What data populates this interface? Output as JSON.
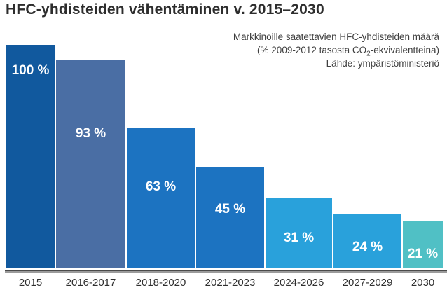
{
  "title": "HFC-yhdisteiden vähentäminen v. 2015–2030",
  "subtitle": {
    "line1": "Markkinoille saatettavien HFC-yhdisteiden määrä",
    "line2_prefix": "(% 2009-2012 tasosta CO",
    "line2_sub": "2",
    "line2_suffix": "-ekvivalentteina)",
    "line3": "Lähde: ympäristöministeriö"
  },
  "chart_data": {
    "type": "bar",
    "title": "HFC-yhdisteiden vähentäminen v. 2015–2030",
    "categories": [
      "2015",
      "2016-2017",
      "2018-2020",
      "2021-2023",
      "2024-2026",
      "2027-2029",
      "2030"
    ],
    "values": [
      100,
      93,
      63,
      45,
      31,
      24,
      21
    ],
    "value_labels": [
      "100 %",
      "93 %",
      "63 %",
      "45 %",
      "31 %",
      "24 %",
      "21 %"
    ],
    "bar_colors": [
      "#11599E",
      "#4A6EA4",
      "#1C73C1",
      "#1C73C1",
      "#29A1DB",
      "#29A1DB",
      "#50C0C5"
    ],
    "xlabel": "",
    "ylabel": "",
    "ylim": [
      0,
      100
    ],
    "grid": false,
    "legend": "none",
    "axis_line_color": "#9b9b9b",
    "value_label_color": "#ffffff",
    "unit": "% of 2009-2012 level, CO2 equivalents"
  }
}
